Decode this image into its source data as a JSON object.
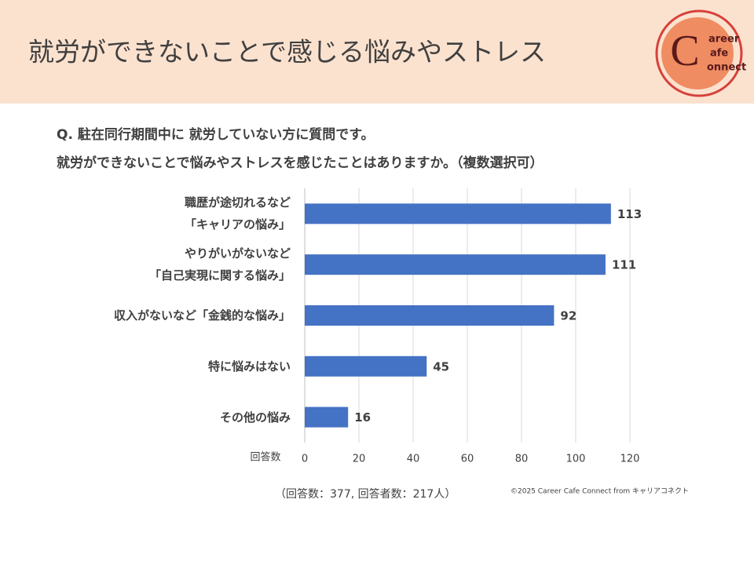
{
  "header": {
    "title": "就労ができないことで感じる悩みやストレス"
  },
  "logo": {
    "initial": "C",
    "lines": [
      "areer",
      "afe",
      "onnect"
    ]
  },
  "question": [
    "Q. 駐在同行期間中に 就労していない方に質問です。",
    "就労ができないことで悩みやストレスを感じたことはありますか。（複数選択可）"
  ],
  "chart_data": {
    "type": "hbar",
    "categories": [
      "職歴が途切れるなど\n「キャリアの悩み」",
      "やりがいがないなど\n「自己実現に関する悩み」",
      "収入がないなど「金銭的な悩み」",
      "特に悩みはない",
      "その他の悩み"
    ],
    "values": [
      113,
      111,
      92,
      45,
      16
    ],
    "color": "#4472c4",
    "xlabel": "回答数",
    "xlim": [
      0,
      120
    ],
    "xticks": [
      0,
      20,
      40,
      60,
      80,
      100,
      120
    ],
    "grid": true,
    "note": "（回答数：377,  回答者数：217人）"
  },
  "copyright": "©2025 Career Cafe Connect from キャリアコネクト"
}
